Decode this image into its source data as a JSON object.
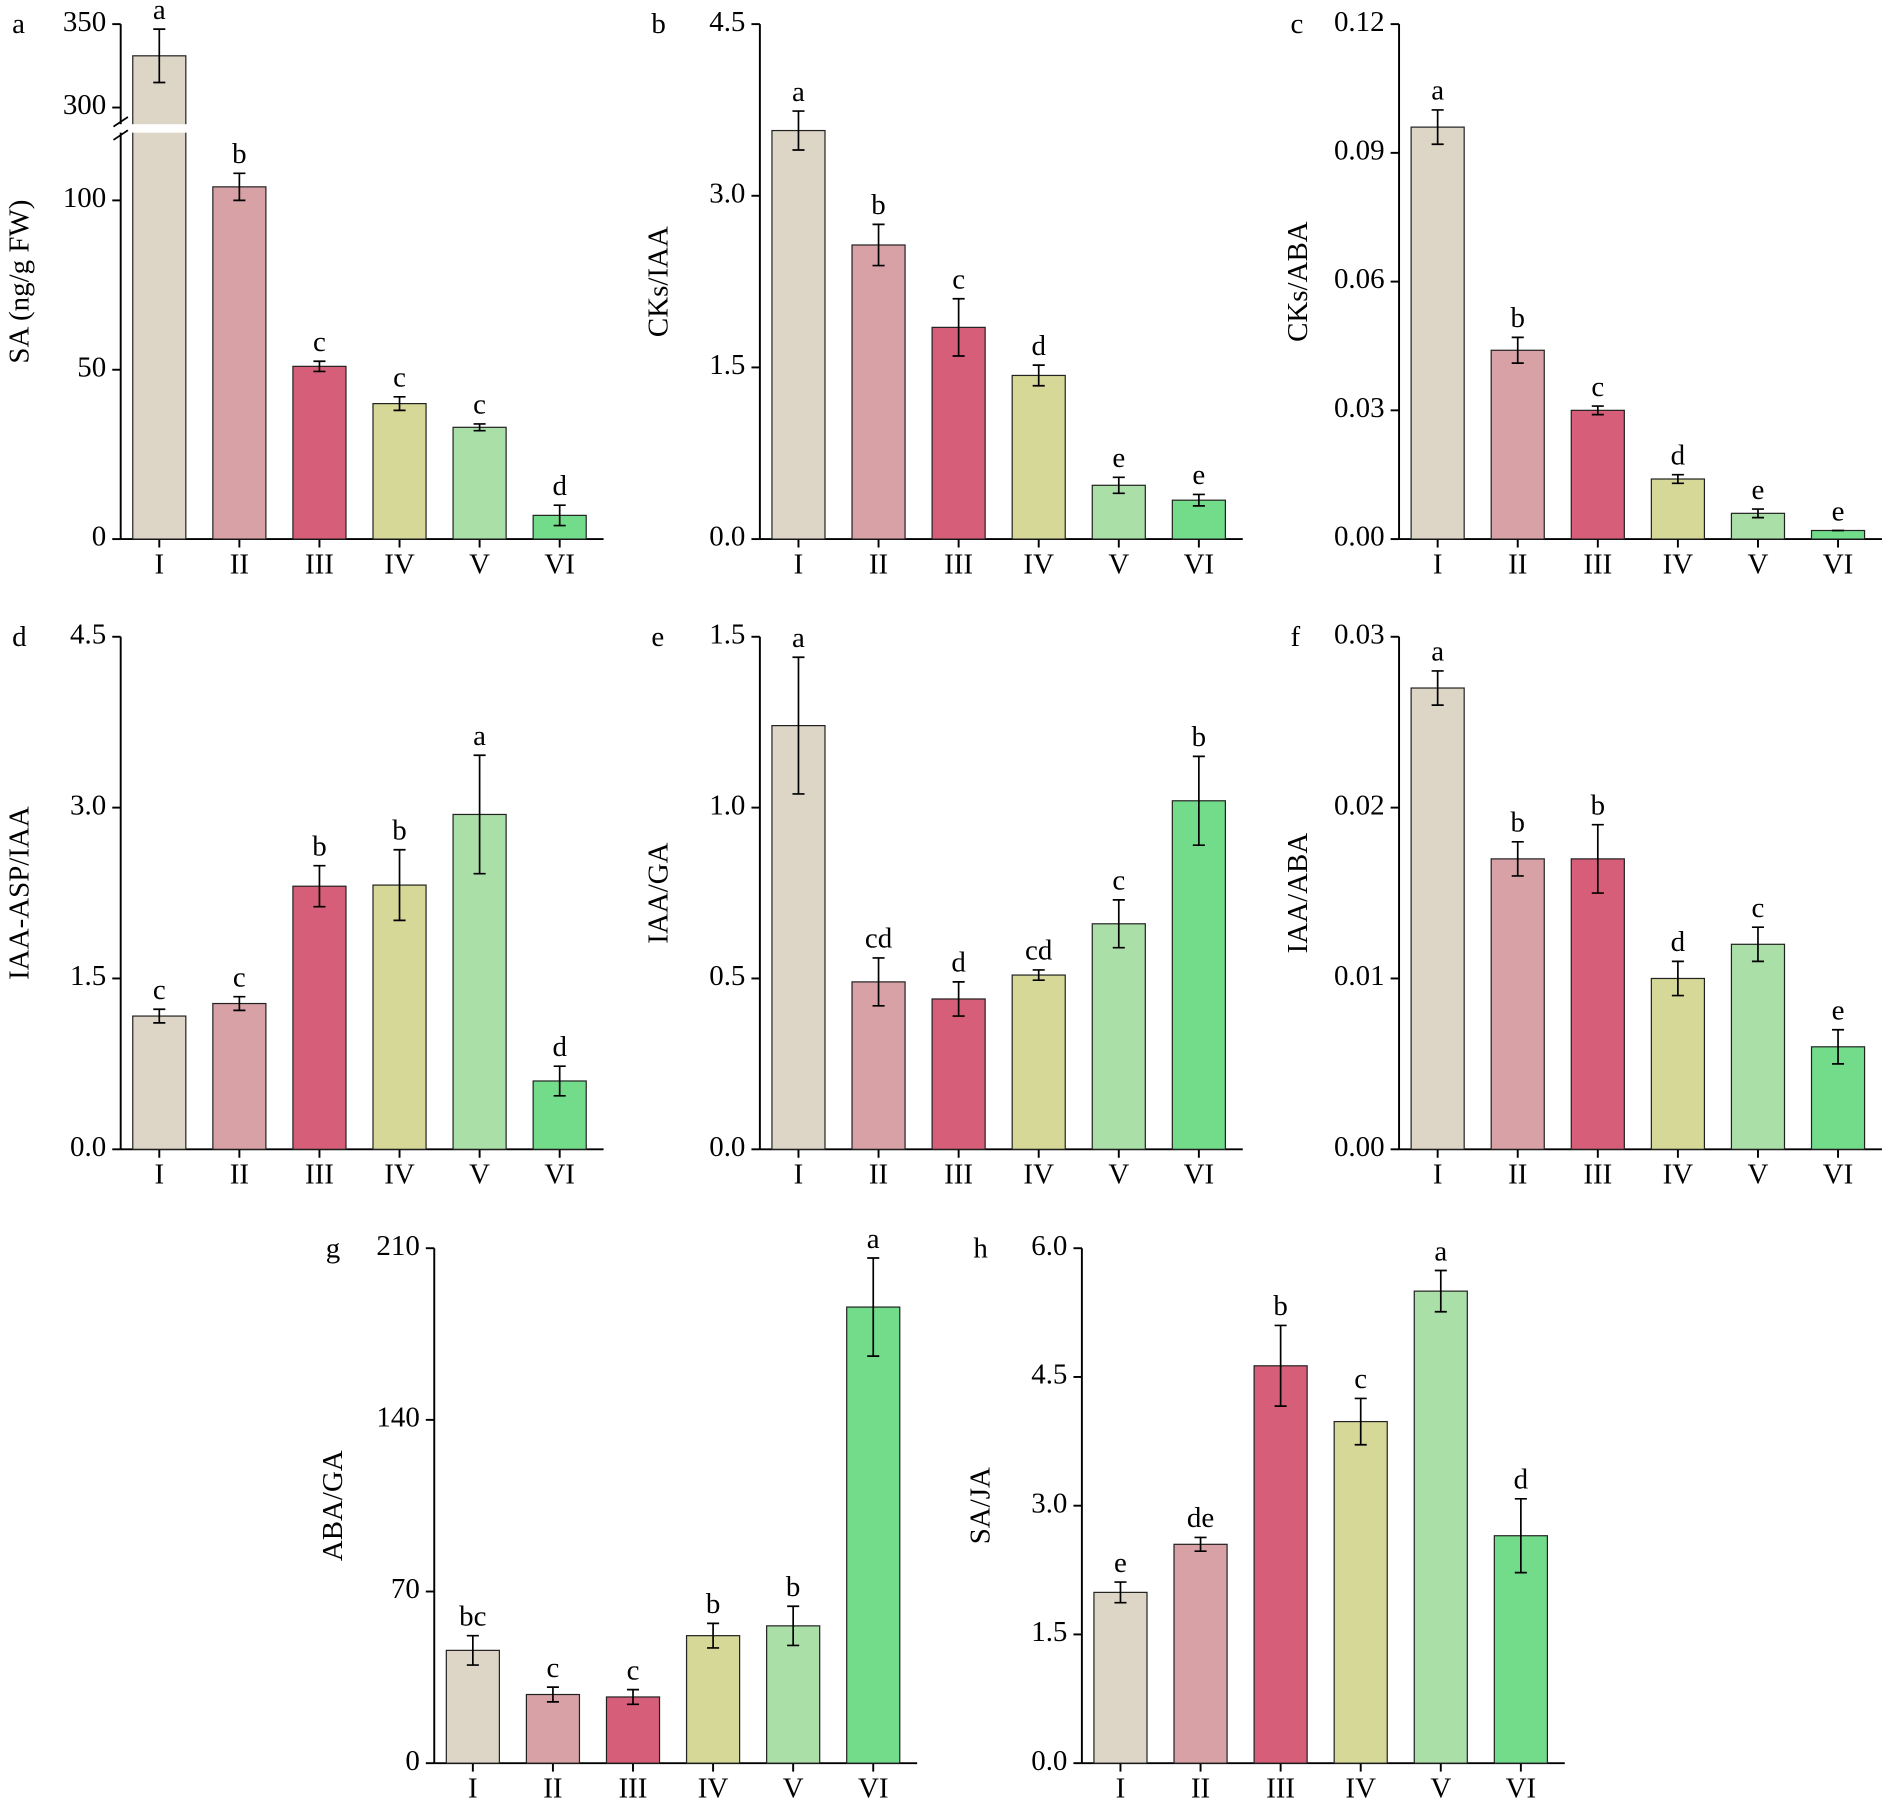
{
  "chart_data": [
    {
      "type": "bar",
      "panel": "a",
      "y_label": "SA (ng/g FW)",
      "categories": [
        "I",
        "II",
        "III",
        "IV",
        "V",
        "VI"
      ],
      "values": [
        331,
        104,
        51,
        40,
        33,
        7
      ],
      "errors": [
        16,
        4,
        1.5,
        2,
        1,
        3
      ],
      "letters": [
        "a",
        "b",
        "c",
        "c",
        "c",
        "d"
      ],
      "colors": [
        "#ddd5c5",
        "#d7a1a6",
        "#d65e78",
        "#d6d897",
        "#abdfa8",
        "#72dc8a"
      ],
      "ylim": [
        0,
        350
      ],
      "y_break": [
        120,
        290
      ],
      "yticks": [
        0,
        50,
        100,
        300,
        350
      ]
    },
    {
      "type": "bar",
      "panel": "b",
      "y_label": "CKs/IAA",
      "categories": [
        "I",
        "II",
        "III",
        "IV",
        "V",
        "VI"
      ],
      "values": [
        3.57,
        2.57,
        1.85,
        1.43,
        0.47,
        0.34
      ],
      "errors": [
        0.17,
        0.18,
        0.25,
        0.09,
        0.07,
        0.05
      ],
      "letters": [
        "a",
        "b",
        "c",
        "d",
        "e",
        "e"
      ],
      "colors": [
        "#ddd5c5",
        "#d7a1a6",
        "#d65e78",
        "#d6d897",
        "#abdfa8",
        "#72dc8a"
      ],
      "ylim": [
        0,
        4.5
      ],
      "yticks": [
        {
          "value": 0,
          "label": "0.0"
        },
        1.5,
        {
          "value": 3,
          "label": "3.0"
        },
        4.5
      ]
    },
    {
      "type": "bar",
      "panel": "c",
      "y_label": "CKs/ABA",
      "categories": [
        "I",
        "II",
        "III",
        "IV",
        "V",
        "VI"
      ],
      "values": [
        0.096,
        0.044,
        0.03,
        0.014,
        0.006,
        0.002
      ],
      "errors": [
        0.004,
        0.003,
        0.001,
        0.001,
        0.001,
        0
      ],
      "letters": [
        "a",
        "b",
        "c",
        "d",
        "e",
        "e"
      ],
      "colors": [
        "#ddd5c5",
        "#d7a1a6",
        "#d65e78",
        "#d6d897",
        "#abdfa8",
        "#72dc8a"
      ],
      "ylim": [
        0,
        0.12
      ],
      "yticks": [
        {
          "value": 0,
          "label": "0.00"
        },
        0.03,
        0.06,
        0.09,
        0.12
      ]
    },
    {
      "type": "bar",
      "panel": "d",
      "y_label": "IAA-ASP/IAA",
      "categories": [
        "I",
        "II",
        "III",
        "IV",
        "V",
        "VI"
      ],
      "values": [
        1.17,
        1.28,
        2.31,
        2.32,
        2.94,
        0.6
      ],
      "errors": [
        0.06,
        0.06,
        0.18,
        0.31,
        0.52,
        0.13
      ],
      "letters": [
        "c",
        "c",
        "b",
        "b",
        "a",
        "d"
      ],
      "colors": [
        "#ddd5c5",
        "#d7a1a6",
        "#d65e78",
        "#d6d897",
        "#abdfa8",
        "#72dc8a"
      ],
      "ylim": [
        0,
        4.5
      ],
      "yticks": [
        {
          "value": 0,
          "label": "0.0"
        },
        1.5,
        {
          "value": 3,
          "label": "3.0"
        },
        4.5
      ]
    },
    {
      "type": "bar",
      "panel": "e",
      "y_label": "IAA/GA",
      "categories": [
        "I",
        "II",
        "III",
        "IV",
        "V",
        "VI"
      ],
      "values": [
        1.24,
        0.49,
        0.44,
        0.51,
        0.66,
        1.02
      ],
      "errors": [
        0.2,
        0.07,
        0.05,
        0.015,
        0.07,
        0.13
      ],
      "letters": [
        "a",
        "cd",
        "d",
        "cd",
        "c",
        "b"
      ],
      "colors": [
        "#ddd5c5",
        "#d7a1a6",
        "#d65e78",
        "#d6d897",
        "#abdfa8",
        "#72dc8a"
      ],
      "ylim": [
        0,
        1.5
      ],
      "yticks": [
        {
          "value": 0,
          "label": "0.0"
        },
        0.5,
        {
          "value": 1,
          "label": "1.0"
        },
        1.5
      ]
    },
    {
      "type": "bar",
      "panel": "f",
      "y_label": "IAA/ABA",
      "categories": [
        "I",
        "II",
        "III",
        "IV",
        "V",
        "VI"
      ],
      "values": [
        0.027,
        0.017,
        0.017,
        0.01,
        0.012,
        0.006
      ],
      "errors": [
        0.001,
        0.001,
        0.002,
        0.001,
        0.001,
        0.001
      ],
      "letters": [
        "a",
        "b",
        "b",
        "d",
        "c",
        "e"
      ],
      "colors": [
        "#ddd5c5",
        "#d7a1a6",
        "#d65e78",
        "#d6d897",
        "#abdfa8",
        "#72dc8a"
      ],
      "ylim": [
        0,
        0.03
      ],
      "yticks": [
        {
          "value": 0,
          "label": "0.00"
        },
        0.01,
        0.02,
        0.03
      ]
    },
    {
      "type": "bar",
      "panel": "g",
      "y_label": "ABA/GA",
      "categories": [
        "I",
        "II",
        "III",
        "IV",
        "V",
        "VI"
      ],
      "values": [
        46,
        28,
        27,
        52,
        56,
        186
      ],
      "errors": [
        6,
        3,
        3,
        5,
        8,
        20
      ],
      "letters": [
        "bc",
        "c",
        "c",
        "b",
        "b",
        "a"
      ],
      "colors": [
        "#ddd5c5",
        "#d7a1a6",
        "#d65e78",
        "#d6d897",
        "#abdfa8",
        "#72dc8a"
      ],
      "ylim": [
        0,
        210
      ],
      "yticks": [
        0,
        70,
        140,
        210
      ]
    },
    {
      "type": "bar",
      "panel": "h",
      "y_label": "SA/JA",
      "categories": [
        "I",
        "II",
        "III",
        "IV",
        "V",
        "VI"
      ],
      "values": [
        1.99,
        2.55,
        4.63,
        3.98,
        5.5,
        2.65
      ],
      "errors": [
        0.12,
        0.08,
        0.47,
        0.27,
        0.24,
        0.43
      ],
      "letters": [
        "e",
        "de",
        "b",
        "c",
        "a",
        "d"
      ],
      "colors": [
        "#ddd5c5",
        "#d7a1a6",
        "#d65e78",
        "#d6d897",
        "#abdfa8",
        "#72dc8a"
      ],
      "ylim": [
        0,
        6
      ],
      "yticks": [
        {
          "value": 0,
          "label": "0.0"
        },
        1.5,
        {
          "value": 3,
          "label": "3.0"
        },
        4.5,
        {
          "value": 6,
          "label": "6.0"
        }
      ]
    }
  ]
}
